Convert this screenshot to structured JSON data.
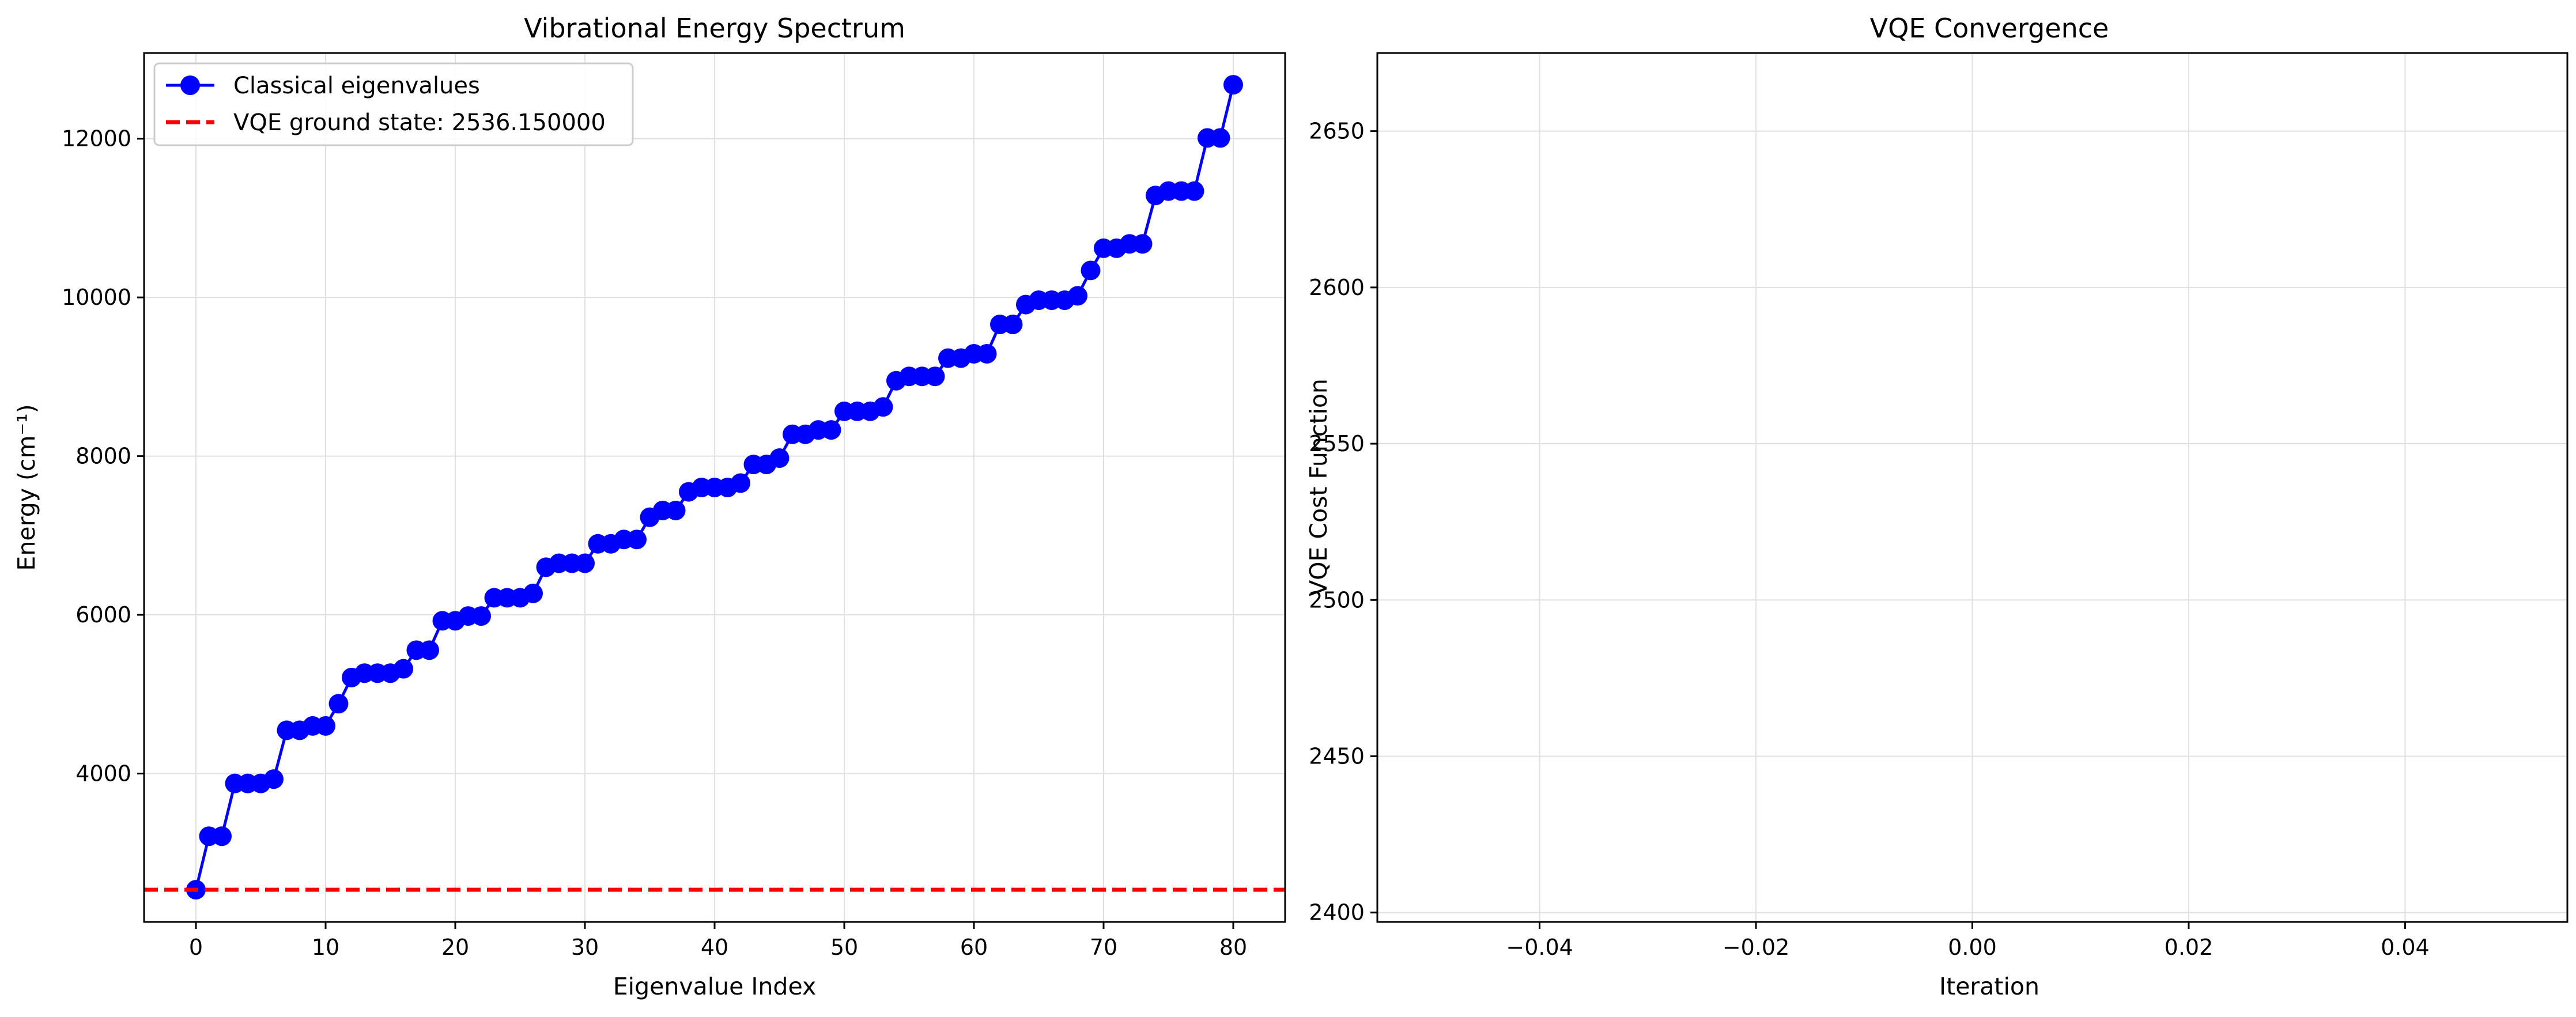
{
  "chart_data": [
    {
      "type": "line",
      "title": "Vibrational Energy Spectrum",
      "xlabel": "Eigenvalue Index",
      "ylabel": "Energy (cm⁻¹)",
      "xlim": [
        -4,
        84
      ],
      "ylim": [
        2130,
        13080
      ],
      "xticks": [
        0,
        10,
        20,
        30,
        40,
        50,
        60,
        70,
        80
      ],
      "yticks": [
        4000,
        6000,
        8000,
        10000,
        12000
      ],
      "grid": true,
      "legend_position": "upper-left",
      "series": [
        {
          "name": "Classical eigenvalues",
          "color": "#0000ff",
          "marker": "circle",
          "x": [
            0,
            1,
            2,
            3,
            4,
            5,
            6,
            7,
            8,
            9,
            10,
            11,
            12,
            13,
            14,
            15,
            16,
            17,
            18,
            19,
            20,
            21,
            22,
            23,
            24,
            25,
            26,
            27,
            28,
            29,
            30,
            31,
            32,
            33,
            34,
            35,
            36,
            37,
            38,
            39,
            40,
            41,
            42,
            43,
            44,
            45,
            46,
            47,
            48,
            49,
            50,
            51,
            52,
            53,
            54,
            55,
            56,
            57,
            58,
            59,
            60,
            61,
            62,
            63,
            64,
            65,
            66,
            67,
            68,
            69,
            70,
            71,
            72,
            73,
            74,
            75,
            76,
            77,
            78,
            79,
            80
          ],
          "values": [
            2536,
            3210,
            3210,
            3875,
            3875,
            3875,
            3930,
            4545,
            4545,
            4600,
            4600,
            4880,
            5210,
            5265,
            5265,
            5265,
            5320,
            5555,
            5555,
            5925,
            5925,
            5985,
            5985,
            6215,
            6215,
            6215,
            6270,
            6600,
            6650,
            6650,
            6650,
            6895,
            6895,
            6950,
            6950,
            7230,
            7315,
            7315,
            7550,
            7605,
            7605,
            7605,
            7660,
            7895,
            7895,
            7975,
            8275,
            8275,
            8330,
            8330,
            8565,
            8565,
            8565,
            8620,
            8950,
            9005,
            9005,
            9005,
            9235,
            9235,
            9290,
            9290,
            9660,
            9660,
            9910,
            9965,
            9965,
            9965,
            10020,
            10340,
            10620,
            10620,
            10675,
            10675,
            11285,
            11340,
            11340,
            11340,
            12010,
            12010,
            12680
          ]
        },
        {
          "name": "VQE ground state: 2536.150000",
          "color": "#ff0000",
          "style": "dashed",
          "hline": 2536.15
        }
      ]
    },
    {
      "type": "line",
      "title": "VQE Convergence",
      "xlabel": "Iteration",
      "ylabel": "VQE Cost Function",
      "xlim": [
        -0.055,
        0.055
      ],
      "ylim": [
        2397,
        2675
      ],
      "xticks": [
        -0.04,
        -0.02,
        0.0,
        0.02,
        0.04
      ],
      "xtick_labels": [
        "−0.04",
        "−0.02",
        "0.00",
        "0.02",
        "0.04"
      ],
      "yticks": [
        2400,
        2450,
        2500,
        2550,
        2600,
        2650
      ],
      "grid": true,
      "series": []
    }
  ]
}
